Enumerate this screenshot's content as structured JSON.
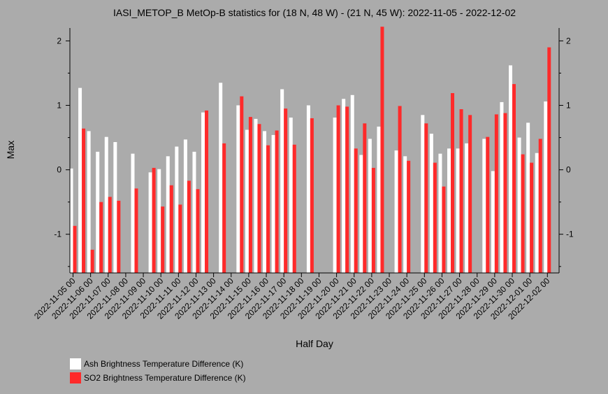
{
  "chart_data": {
    "type": "bar",
    "title": "IASI_METOP_B MetOp-B statistics for (18 N, 48 W) - (21 N, 45 W): 2022-11-05 - 2022-12-02",
    "xlabel": "Half Day",
    "ylabel": "Max",
    "ylim": [
      -1.6,
      2.2
    ],
    "yticks": [
      -1,
      0,
      1,
      2
    ],
    "tick_labels": [
      "2022-11-05 00",
      "2022-11-06 00",
      "2022-11-07 00",
      "2022-11-08 00",
      "2022-11-09 00",
      "2022-11-10 00",
      "2022-11-11 00",
      "2022-11-12 00",
      "2022-11-13 00",
      "2022-11-14 00",
      "2022-11-15 00",
      "2022-11-16 00",
      "2022-11-17 00",
      "2022-11-18 00",
      "2022-11-19 00",
      "2022-11-20 00",
      "2022-11-21 00",
      "2022-11-22 00",
      "2022-11-23 00",
      "2022-11-24 00",
      "2022-11-25 00",
      "2022-11-26 00",
      "2022-11-27 00",
      "2022-11-28 00",
      "2022-11-29 00",
      "2022-11-30 00",
      "2022-12-01 00",
      "2022-12-02 00"
    ],
    "grid": false,
    "legend_position": "bottom-left",
    "series": [
      {
        "name": "Ash Brightness Temperature Difference (K)",
        "color": "#ffffff",
        "values": [
          0.02,
          1.27,
          0.6,
          0.28,
          0.51,
          0.43,
          null,
          0.25,
          null,
          -0.04,
          0.01,
          0.21,
          0.36,
          0.47,
          0.28,
          0.89,
          null,
          1.35,
          null,
          1.0,
          0.62,
          0.79,
          0.6,
          0.54,
          1.25,
          0.81,
          null,
          1.0,
          null,
          null,
          0.81,
          1.1,
          1.16,
          0.23,
          0.48,
          0.67,
          null,
          0.3,
          0.21,
          null,
          0.85,
          0.56,
          0.25,
          0.33,
          0.33,
          0.41,
          null,
          0.48,
          -0.02,
          1.05,
          1.62,
          0.5,
          0.73,
          0.26,
          1.06
        ]
      },
      {
        "name": "SO2 Brightness Temperature Difference (K)",
        "color": "#ff2a2a",
        "values": [
          -0.87,
          0.64,
          -1.24,
          -0.5,
          -0.42,
          -0.48,
          null,
          -0.29,
          null,
          0.03,
          -0.57,
          -0.24,
          -0.54,
          -0.17,
          -0.3,
          0.92,
          null,
          0.41,
          null,
          1.14,
          0.82,
          0.71,
          0.38,
          0.61,
          0.95,
          0.39,
          null,
          0.8,
          null,
          null,
          1.0,
          0.98,
          0.33,
          0.72,
          0.03,
          2.22,
          null,
          0.99,
          0.14,
          null,
          0.72,
          0.11,
          -0.26,
          1.19,
          0.94,
          0.85,
          null,
          0.51,
          0.86,
          0.88,
          1.33,
          0.24,
          0.11,
          0.48,
          1.9
        ]
      }
    ]
  }
}
